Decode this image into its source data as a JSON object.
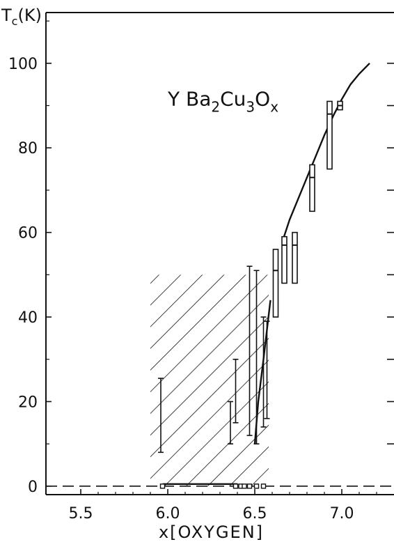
{
  "chart_data": {
    "type": "scatter",
    "title": "",
    "xlabel": "x[OXYGEN]",
    "ylabel_main": "T",
    "ylabel_sub": "c",
    "ylabel_unit": "(K)",
    "xlim": [
      5.3,
      7.3
    ],
    "ylim": [
      -2,
      112
    ],
    "x_ticks": [
      5.5,
      6.0,
      6.5,
      7.0
    ],
    "x_tick_labels": [
      "5.5",
      "6.0",
      "6.5",
      "7.0"
    ],
    "y_ticks": [
      0,
      20,
      40,
      60,
      80,
      100
    ],
    "y_tick_labels": [
      "0",
      "20",
      "40",
      "60",
      "80",
      "100"
    ],
    "annotation": {
      "parts": [
        {
          "text": "Y Ba",
          "shift": 0
        },
        {
          "text": "2",
          "shift": 1
        },
        {
          "text": "Cu",
          "shift": 0
        },
        {
          "text": "3",
          "shift": 1
        },
        {
          "text": "O",
          "shift": 0
        },
        {
          "text": "x",
          "shift": 1
        }
      ],
      "x": 6.0,
      "y": 90
    },
    "hatched_region": {
      "x_range": [
        5.9,
        6.58
      ],
      "y_range": [
        0,
        50
      ]
    },
    "zero_line": {
      "style": "dashed",
      "y": 0
    },
    "error_bars": [
      {
        "x": 5.96,
        "low": 8,
        "high": 25.5
      },
      {
        "x": 6.36,
        "low": 10,
        "high": 20
      },
      {
        "x": 6.39,
        "low": 15,
        "high": 30
      },
      {
        "x": 6.47,
        "low": 12,
        "high": 52
      },
      {
        "x": 6.51,
        "low": 10,
        "high": 51
      },
      {
        "x": 6.55,
        "low": 14,
        "high": 40
      },
      {
        "x": 6.57,
        "low": 16,
        "high": 39
      }
    ],
    "rect_points": [
      {
        "x": 6.62,
        "low": 40,
        "high": 56,
        "mid": 51
      },
      {
        "x": 6.67,
        "low": 48,
        "high": 59,
        "mid": 57
      },
      {
        "x": 6.73,
        "low": 48,
        "high": 60,
        "mid": 57
      },
      {
        "x": 6.83,
        "low": 65,
        "high": 76,
        "mid": 73
      },
      {
        "x": 6.93,
        "low": 75,
        "high": 91,
        "mid": 88
      },
      {
        "x": 6.99,
        "low": 89,
        "high": 91,
        "mid": 90
      }
    ],
    "zero_points": [
      5.97,
      6.39,
      6.42,
      6.44,
      6.47,
      6.51,
      6.55
    ],
    "curve_low": [
      [
        5.97,
        0.5
      ],
      [
        6.4,
        0.5
      ]
    ],
    "curve_steep": [
      [
        6.5,
        10
      ],
      [
        6.52,
        20
      ],
      [
        6.55,
        30
      ],
      [
        6.57,
        37
      ],
      [
        6.59,
        44
      ]
    ],
    "curve_main": [
      [
        6.66,
        58
      ],
      [
        6.7,
        63
      ],
      [
        6.75,
        68
      ],
      [
        6.8,
        73
      ],
      [
        6.85,
        78
      ],
      [
        6.9,
        83
      ],
      [
        6.95,
        87.5
      ],
      [
        7.0,
        91.5
      ],
      [
        7.05,
        95
      ],
      [
        7.1,
        97.5
      ],
      [
        7.16,
        100
      ]
    ]
  }
}
